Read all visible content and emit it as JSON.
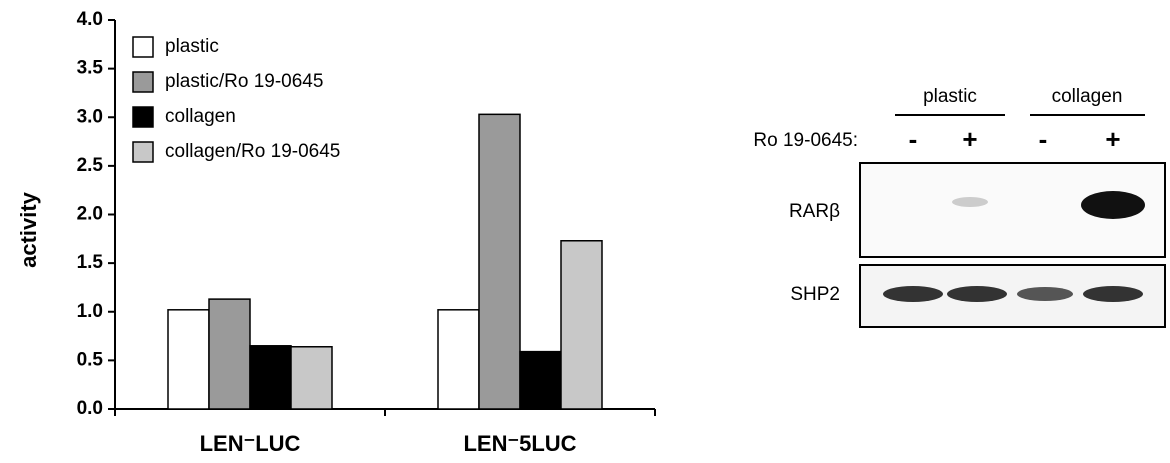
{
  "chart_data": {
    "type": "bar",
    "y_label": "activity",
    "categories": [
      "LEN⁻LUC",
      "LEN⁻5LUC"
    ],
    "series": [
      {
        "name": "plastic",
        "color": "#ffffff",
        "values": [
          1.02,
          1.02
        ]
      },
      {
        "name": "plastic/Ro 19-0645",
        "color": "#9a9a9a",
        "values": [
          1.13,
          3.03
        ]
      },
      {
        "name": "collagen",
        "color": "#000000",
        "values": [
          0.65,
          0.59
        ]
      },
      {
        "name": "collagen/Ro 19-0645",
        "color": "#c8c8c8",
        "values": [
          0.64,
          1.73
        ]
      }
    ],
    "ylim": [
      0,
      4
    ],
    "yticks": [
      {
        "value": 0,
        "label": "0.0"
      },
      {
        "value": 0.5,
        "label": "0.5"
      },
      {
        "value": 1,
        "label": "1.0"
      },
      {
        "value": 1.5,
        "label": "1.5"
      },
      {
        "value": 2,
        "label": "2.0"
      },
      {
        "value": 2.5,
        "label": "2.5"
      },
      {
        "value": 3,
        "label": "3.0"
      },
      {
        "value": 3.5,
        "label": "3.5"
      },
      {
        "value": 4,
        "label": "4.0"
      }
    ],
    "legend": "upper left"
  },
  "blot": {
    "groups": [
      "plastic",
      "collagen"
    ],
    "treatment_label": "Ro 19-0645:",
    "lanes": [
      "-",
      "+",
      "-",
      "+"
    ],
    "rows": [
      "RARβ",
      "SHP2"
    ]
  }
}
